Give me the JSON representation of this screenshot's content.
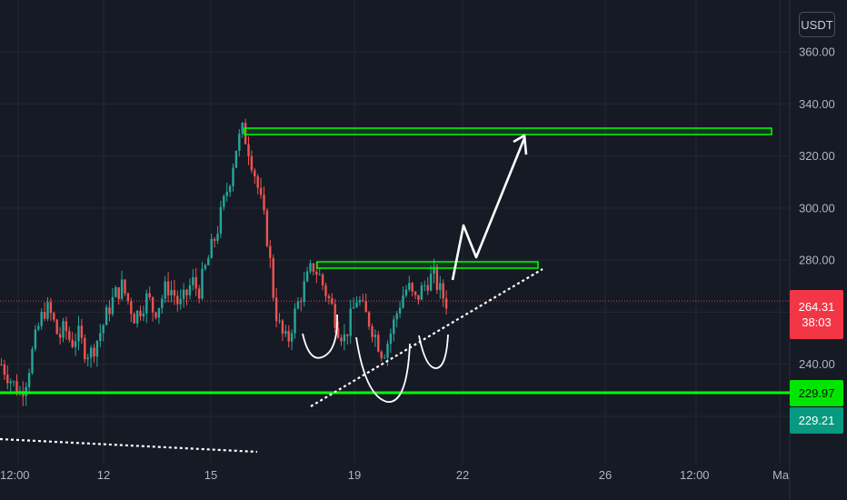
{
  "chart_data": {
    "type": "candlestick",
    "currency": "USDT",
    "ylim": [
      218,
      372
    ],
    "y_ticks": [
      "360.00",
      "340.00",
      "320.00",
      "300.00",
      "280.00",
      "240.00"
    ],
    "x_ticks": [
      "12:00",
      "12",
      "15",
      "19",
      "22",
      "26",
      "12:00",
      "Ma"
    ],
    "current_price": "264.31",
    "countdown": "38:03",
    "price_labels": [
      "229.97",
      "229.21"
    ],
    "levels": {
      "resistance_high": 329.5,
      "resistance_mid": 278.5,
      "support": 229.97,
      "last": 264.31
    },
    "colors": {
      "up": "#26a69a",
      "down": "#ef5350",
      "level": "#00ff00",
      "current": "#f23645",
      "teal": "#089981",
      "grid": "#242833",
      "annotation": "#ffffff"
    },
    "price_path": [
      240,
      236,
      232,
      229,
      235,
      246,
      256,
      262,
      258,
      250,
      254,
      248,
      252,
      246,
      244,
      249,
      255,
      262,
      267,
      270,
      264,
      258,
      262,
      266,
      260,
      264,
      270,
      268,
      262,
      266,
      272,
      268,
      276,
      284,
      292,
      302,
      312,
      324,
      330,
      322,
      312,
      300,
      286,
      262,
      252,
      248,
      258,
      266,
      272,
      278,
      274,
      268,
      262,
      254,
      250,
      258,
      266,
      260,
      256,
      250,
      244,
      250,
      258,
      266,
      270,
      264,
      268,
      272,
      274,
      268,
      264
    ]
  }
}
